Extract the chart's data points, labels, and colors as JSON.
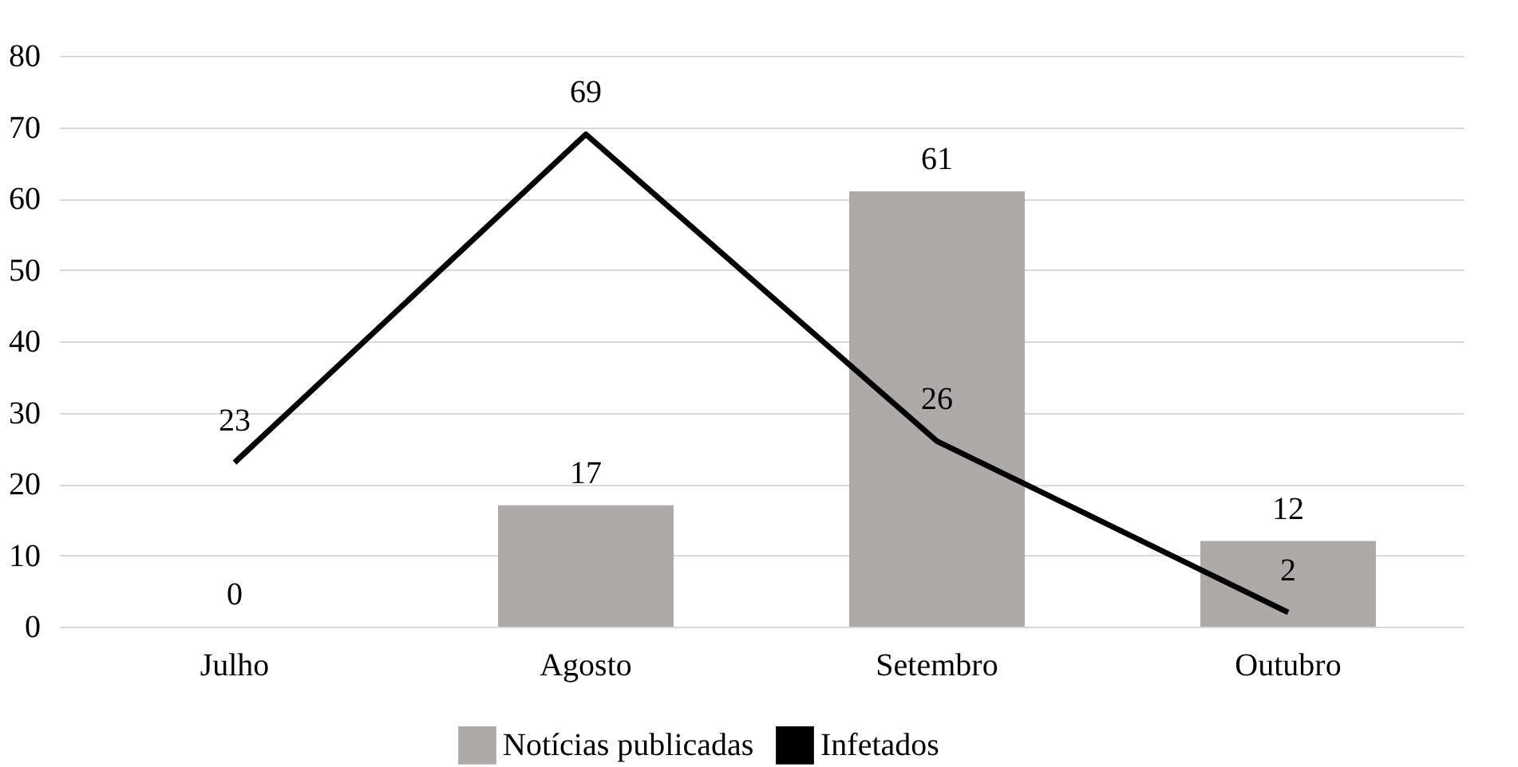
{
  "chart_data": {
    "type": "bar",
    "categories": [
      "Julho",
      "Agosto",
      "Setembro",
      "Outubro"
    ],
    "series": [
      {
        "name": "Notícias publicadas",
        "color": "#aeaaaa",
        "values": [
          0,
          17,
          61,
          12
        ]
      },
      {
        "name": "Infetados",
        "type": "line",
        "color": "#000000",
        "values": [
          23,
          69,
          26,
          2
        ]
      }
    ],
    "ylim": [
      0,
      80
    ],
    "yticks": [
      0,
      10,
      20,
      30,
      40,
      50,
      60,
      70,
      80
    ],
    "grid": "y",
    "legend": "bottom",
    "data_labels": true
  }
}
